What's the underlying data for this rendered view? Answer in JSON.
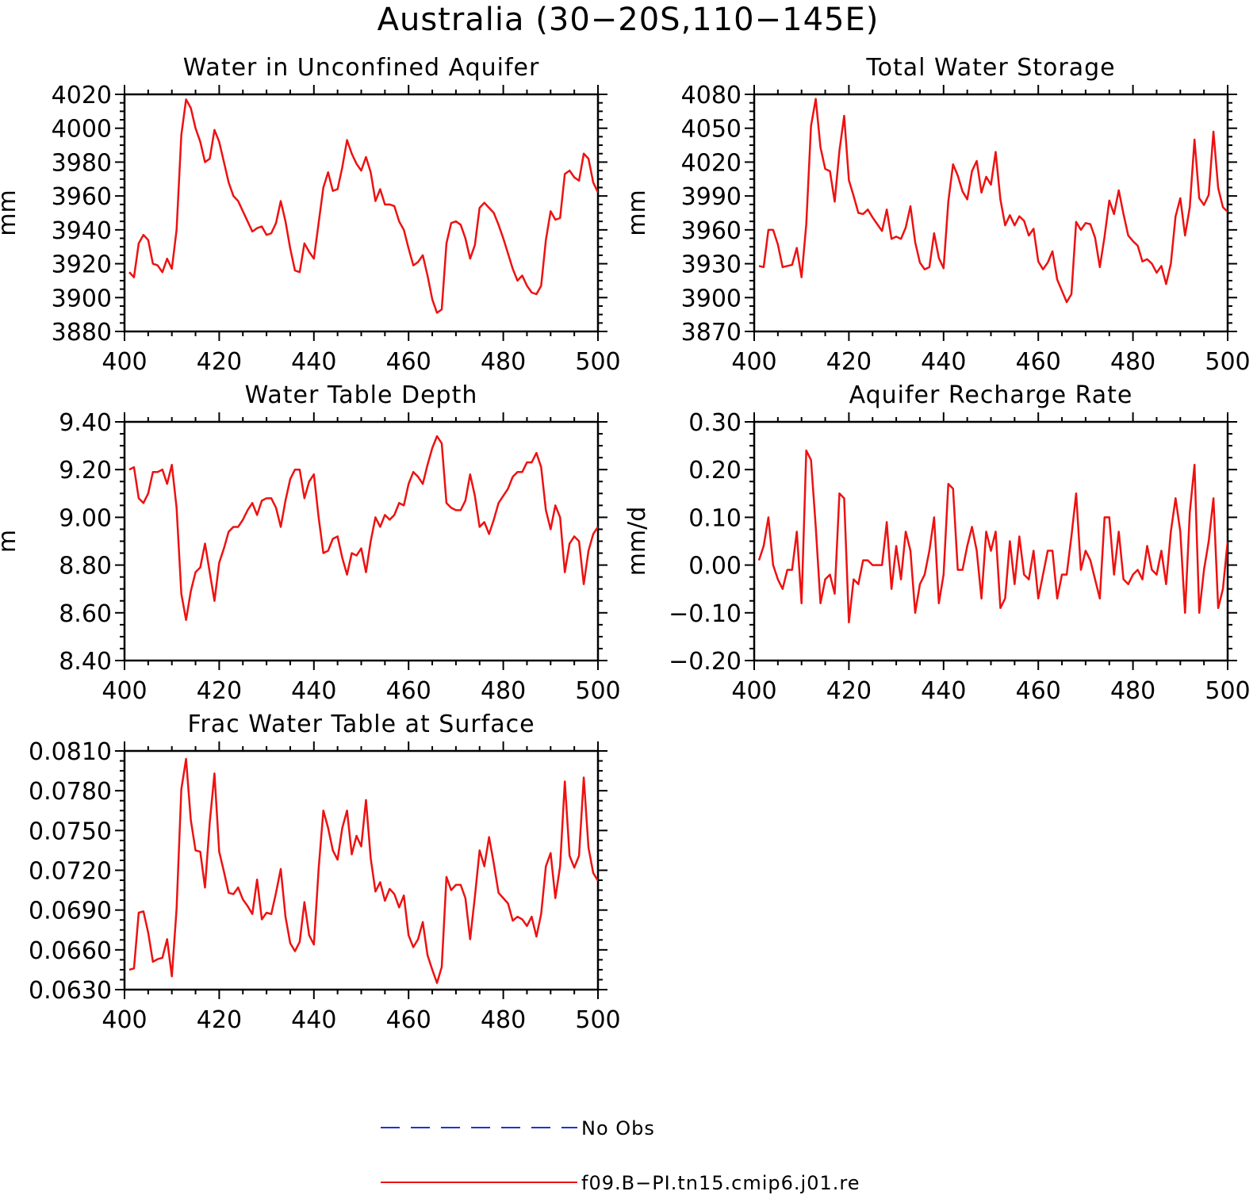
{
  "figure": {
    "title": "Australia (30−20S,110−145E)",
    "line_color": "#ee1111",
    "obs_color": "#2233cc"
  },
  "legend": {
    "entries": [
      {
        "label": "No Obs",
        "style": "dashed",
        "color": "#2233cc"
      },
      {
        "label": "f09.B−PI.tn15.cmip6.j01.re",
        "style": "solid",
        "color": "#ee1111"
      }
    ]
  },
  "chart_data": [
    {
      "type": "line",
      "title": "Water in Unconfined Aquifer",
      "ylabel": "mm",
      "xlim": [
        400,
        500
      ],
      "ylim": [
        3880,
        4020
      ],
      "xticks": [
        "400",
        "420",
        "440",
        "460",
        "480",
        "500"
      ],
      "yticks": [
        "3880",
        "3900",
        "3920",
        "3940",
        "3960",
        "3980",
        "4000",
        "4020"
      ],
      "x_start": 401,
      "series": [
        {
          "values": [
            3915,
            3912,
            3932,
            3937,
            3934,
            3920,
            3919,
            3915,
            3923,
            3917,
            3940,
            3996,
            4017,
            4012,
            4000,
            3992,
            3980,
            3982,
            3999,
            3992,
            3980,
            3968,
            3960,
            3957,
            3951,
            3945,
            3939,
            3941,
            3942,
            3937,
            3938,
            3944,
            3957,
            3945,
            3929,
            3916,
            3915,
            3932,
            3927,
            3923,
            3944,
            3965,
            3974,
            3963,
            3964,
            3977,
            3993,
            3985,
            3979,
            3975,
            3983,
            3974,
            3957,
            3964,
            3955,
            3955,
            3954,
            3945,
            3940,
            3929,
            3919,
            3921,
            3925,
            3913,
            3899,
            3891,
            3893,
            3932,
            3944,
            3945,
            3943,
            3935,
            3923,
            3931,
            3953,
            3956,
            3953,
            3950,
            3943,
            3935,
            3926,
            3917,
            3910,
            3913,
            3907,
            3903,
            3902,
            3907,
            3934,
            3951,
            3946,
            3947,
            3973,
            3975,
            3971,
            3969,
            3985,
            3982,
            3968,
            3962
          ]
        }
      ]
    },
    {
      "type": "line",
      "title": "Total Water Storage",
      "ylabel": "mm",
      "xlim": [
        400,
        500
      ],
      "ylim": [
        3870,
        4080
      ],
      "xticks": [
        "400",
        "420",
        "440",
        "460",
        "480",
        "500"
      ],
      "yticks": [
        "3870",
        "3900",
        "3930",
        "3960",
        "3990",
        "4020",
        "4050",
        "4080"
      ],
      "x_start": 401,
      "series": [
        {
          "values": [
            3928,
            3927,
            3960,
            3960,
            3947,
            3927,
            3928,
            3929,
            3944,
            3918,
            3965,
            4052,
            4076,
            4033,
            4014,
            4012,
            3985,
            4030,
            4061,
            4004,
            3990,
            3975,
            3974,
            3978,
            3971,
            3965,
            3959,
            3978,
            3952,
            3954,
            3952,
            3962,
            3981,
            3949,
            3931,
            3925,
            3927,
            3957,
            3935,
            3926,
            3985,
            4018,
            4008,
            3994,
            3987,
            4012,
            4021,
            3993,
            4007,
            4000,
            4029,
            3987,
            3964,
            3973,
            3964,
            3972,
            3968,
            3955,
            3961,
            3932,
            3925,
            3931,
            3941,
            3916,
            3906,
            3896,
            3903,
            3967,
            3960,
            3966,
            3965,
            3953,
            3927,
            3954,
            3986,
            3974,
            3995,
            3974,
            3955,
            3950,
            3946,
            3932,
            3934,
            3930,
            3922,
            3928,
            3912,
            3930,
            3972,
            3988,
            3955,
            3980,
            4040,
            3988,
            3982,
            3991,
            4047,
            3997,
            3980,
            3976
          ]
        }
      ]
    },
    {
      "type": "line",
      "title": "Water Table Depth",
      "ylabel": "m",
      "xlim": [
        400,
        500
      ],
      "ylim": [
        8.4,
        9.4
      ],
      "xticks": [
        "400",
        "420",
        "440",
        "460",
        "480",
        "500"
      ],
      "yticks": [
        "8.40",
        "8.60",
        "8.80",
        "9.00",
        "9.20",
        "9.40"
      ],
      "x_start": 401,
      "series": [
        {
          "values": [
            9.2,
            9.21,
            9.08,
            9.06,
            9.1,
            9.19,
            9.19,
            9.2,
            9.14,
            9.22,
            9.04,
            8.68,
            8.57,
            8.69,
            8.77,
            8.79,
            8.89,
            8.77,
            8.65,
            8.81,
            8.87,
            8.94,
            8.96,
            8.96,
            8.99,
            9.03,
            9.06,
            9.01,
            9.07,
            9.08,
            9.08,
            9.04,
            8.96,
            9.07,
            9.16,
            9.2,
            9.2,
            9.08,
            9.15,
            9.18,
            9.0,
            8.85,
            8.86,
            8.91,
            8.92,
            8.83,
            8.76,
            8.85,
            8.84,
            8.87,
            8.77,
            8.9,
            9.0,
            8.96,
            9.01,
            8.99,
            9.01,
            9.06,
            9.05,
            9.14,
            9.19,
            9.17,
            9.14,
            9.22,
            9.29,
            9.34,
            9.31,
            9.06,
            9.04,
            9.03,
            9.03,
            9.07,
            9.18,
            9.09,
            8.96,
            8.98,
            8.93,
            8.99,
            9.06,
            9.09,
            9.12,
            9.17,
            9.19,
            9.19,
            9.23,
            9.23,
            9.27,
            9.21,
            9.03,
            8.95,
            9.05,
            9.0,
            8.77,
            8.89,
            8.92,
            8.9,
            8.72,
            8.86,
            8.93,
            8.96
          ]
        }
      ]
    },
    {
      "type": "line",
      "title": "Aquifer Recharge Rate",
      "ylabel": "mm/d",
      "xlim": [
        400,
        500
      ],
      "ylim": [
        -0.2,
        0.3
      ],
      "xticks": [
        "400",
        "420",
        "440",
        "460",
        "480",
        "500"
      ],
      "yticks": [
        "−0.20",
        "−0.10",
        "0.00",
        "0.10",
        "0.20",
        "0.30"
      ],
      "x_start": 401,
      "series": [
        {
          "values": [
            0.01,
            0.04,
            0.1,
            0.0,
            -0.03,
            -0.05,
            -0.01,
            -0.01,
            0.07,
            -0.08,
            0.24,
            0.22,
            0.08,
            -0.08,
            -0.03,
            -0.02,
            -0.06,
            0.15,
            0.14,
            -0.12,
            -0.03,
            -0.04,
            0.01,
            0.01,
            0.0,
            0.0,
            0.0,
            0.09,
            -0.05,
            0.04,
            -0.03,
            0.07,
            0.03,
            -0.1,
            -0.04,
            -0.02,
            0.03,
            0.1,
            -0.08,
            -0.02,
            0.17,
            0.16,
            -0.01,
            -0.01,
            0.04,
            0.08,
            0.03,
            -0.07,
            0.07,
            0.03,
            0.07,
            -0.09,
            -0.07,
            0.05,
            -0.04,
            0.06,
            -0.02,
            -0.03,
            0.03,
            -0.07,
            -0.02,
            0.03,
            0.03,
            -0.07,
            -0.02,
            -0.02,
            0.06,
            0.15,
            -0.01,
            0.03,
            0.01,
            -0.03,
            -0.07,
            0.1,
            0.1,
            -0.02,
            0.07,
            -0.03,
            -0.04,
            -0.02,
            -0.01,
            -0.03,
            0.04,
            -0.01,
            -0.02,
            0.03,
            -0.04,
            0.07,
            0.14,
            0.07,
            -0.1,
            0.11,
            0.21,
            -0.1,
            -0.01,
            0.05,
            0.14,
            -0.09,
            -0.05,
            0.05
          ]
        }
      ]
    },
    {
      "type": "line",
      "title": "Frac Water Table at Surface",
      "ylabel": "",
      "xlim": [
        400,
        500
      ],
      "ylim": [
        0.063,
        0.081
      ],
      "xticks": [
        "400",
        "420",
        "440",
        "460",
        "480",
        "500"
      ],
      "yticks": [
        "0.0630",
        "0.0660",
        "0.0690",
        "0.0720",
        "0.0750",
        "0.0780",
        "0.0810"
      ],
      "x_start": 401,
      "series": [
        {
          "values": [
            0.0645,
            0.0646,
            0.0688,
            0.0689,
            0.0673,
            0.0651,
            0.0653,
            0.0654,
            0.0668,
            0.064,
            0.0691,
            0.0781,
            0.0804,
            0.0758,
            0.0735,
            0.0734,
            0.0707,
            0.0756,
            0.0793,
            0.0734,
            0.0719,
            0.0703,
            0.0702,
            0.0707,
            0.0698,
            0.0693,
            0.0687,
            0.0713,
            0.0683,
            0.0688,
            0.0687,
            0.0703,
            0.0721,
            0.0685,
            0.0665,
            0.0659,
            0.0666,
            0.0696,
            0.0671,
            0.0664,
            0.0721,
            0.0765,
            0.0752,
            0.0735,
            0.0728,
            0.0752,
            0.0765,
            0.0732,
            0.0746,
            0.0738,
            0.0773,
            0.0729,
            0.0704,
            0.0711,
            0.0697,
            0.0706,
            0.0702,
            0.0692,
            0.0701,
            0.0671,
            0.0662,
            0.0668,
            0.0681,
            0.0656,
            0.0645,
            0.0635,
            0.0647,
            0.0715,
            0.0705,
            0.0709,
            0.0709,
            0.0699,
            0.0668,
            0.07,
            0.0735,
            0.0723,
            0.0745,
            0.0725,
            0.0703,
            0.0699,
            0.0695,
            0.0682,
            0.0685,
            0.0683,
            0.0678,
            0.0685,
            0.067,
            0.0687,
            0.0723,
            0.0733,
            0.0699,
            0.0723,
            0.0787,
            0.0731,
            0.0722,
            0.0731,
            0.079,
            0.0737,
            0.0718,
            0.0712
          ]
        }
      ]
    }
  ]
}
